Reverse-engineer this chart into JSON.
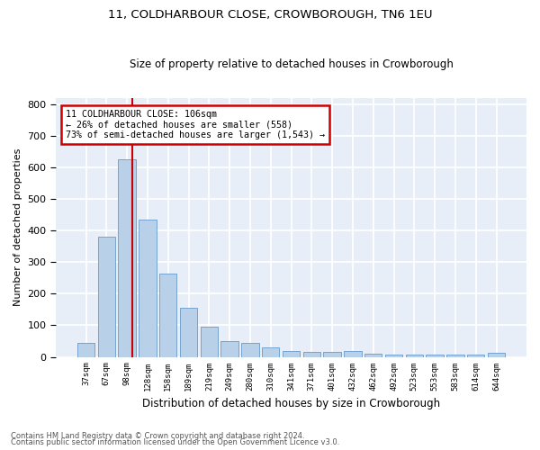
{
  "title1": "11, COLDHARBOUR CLOSE, CROWBOROUGH, TN6 1EU",
  "title2": "Size of property relative to detached houses in Crowborough",
  "xlabel": "Distribution of detached houses by size in Crowborough",
  "ylabel": "Number of detached properties",
  "categories": [
    "37sqm",
    "67sqm",
    "98sqm",
    "128sqm",
    "158sqm",
    "189sqm",
    "219sqm",
    "249sqm",
    "280sqm",
    "310sqm",
    "341sqm",
    "371sqm",
    "401sqm",
    "432sqm",
    "462sqm",
    "492sqm",
    "523sqm",
    "553sqm",
    "583sqm",
    "614sqm",
    "644sqm"
  ],
  "values": [
    43,
    380,
    625,
    435,
    265,
    155,
    97,
    50,
    45,
    30,
    20,
    15,
    15,
    20,
    10,
    8,
    8,
    8,
    8,
    8,
    12
  ],
  "bar_color": "#b8d0e8",
  "bar_edge_color": "#6699cc",
  "background_color": "#e8eef8",
  "grid_color": "#ffffff",
  "vline_x": 2.27,
  "vline_color": "#cc0000",
  "annotation_text": "11 COLDHARBOUR CLOSE: 106sqm\n← 26% of detached houses are smaller (558)\n73% of semi-detached houses are larger (1,543) →",
  "annotation_box_color": "#cc0000",
  "ylim": [
    0,
    820
  ],
  "yticks": [
    0,
    100,
    200,
    300,
    400,
    500,
    600,
    700,
    800
  ],
  "footer1": "Contains HM Land Registry data © Crown copyright and database right 2024.",
  "footer2": "Contains public sector information licensed under the Open Government Licence v3.0."
}
